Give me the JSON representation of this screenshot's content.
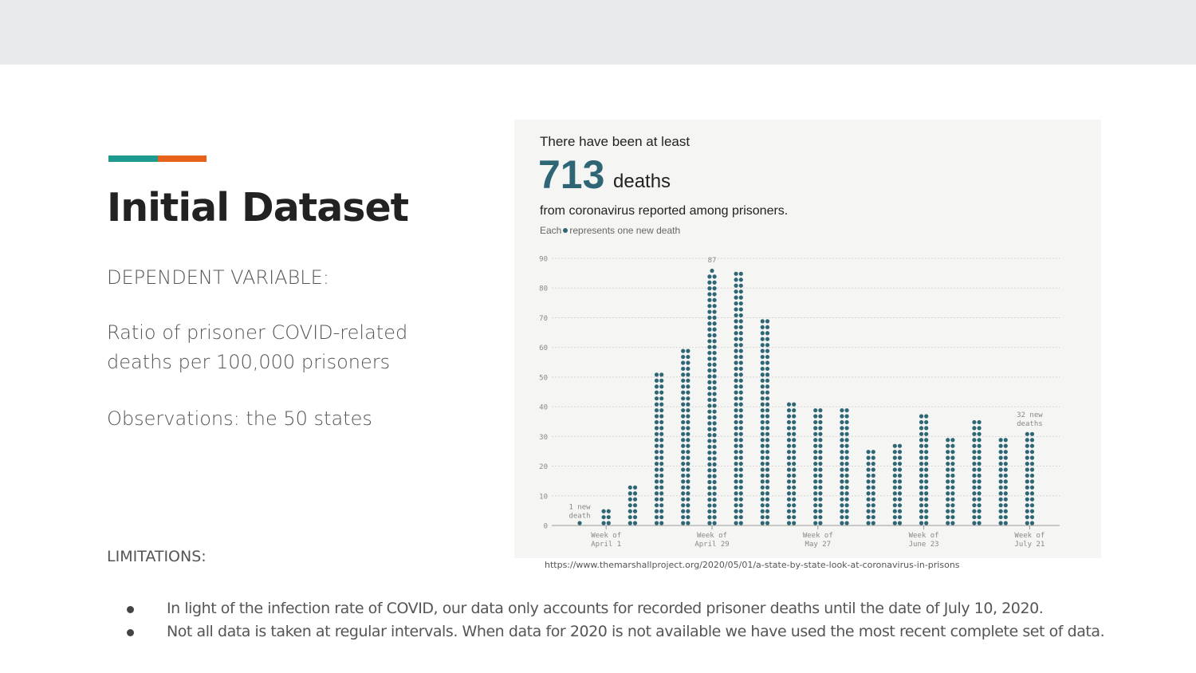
{
  "slide": {
    "title": "Initial Dataset",
    "dependent_label": "DEPENDENT VARIABLE:",
    "dependent_value": "Ratio of prisoner COVID-related deaths per 100,000 prisoners",
    "observations": "Observations: the 50 states",
    "limitations_title": "LIMITATIONS:",
    "limitations": [
      "In light of the infection rate of COVID, our data only accounts for recorded prisoner deaths until the date of July 10, 2020.",
      "Not all data is taken at regular intervals. When data for 2020 is not available we have used the most recent complete set of data."
    ],
    "source": "https://www.themarshallproject.org/2020/05/01/a-state-by-state-look-at-coronavirus-in-prisons"
  },
  "colors": {
    "accent_teal": "#1e9a8e",
    "accent_orange": "#e8611a",
    "dot": "#2f6676",
    "top_band": "#e8eaeb"
  },
  "chart_header": {
    "lead": "There have been at least",
    "total": "713",
    "unit": "deaths",
    "subtitle": "from coronavirus reported among prisoners.",
    "legend_prefix": "Each",
    "legend_suffix": "represents one new death"
  },
  "chart_data": {
    "type": "bar",
    "encoding": "dot stacks, one dot per death",
    "values": [
      1,
      6,
      14,
      52,
      60,
      87,
      86,
      70,
      42,
      40,
      40,
      26,
      28,
      38,
      30,
      36,
      30,
      32
    ],
    "x_tick_labels": [
      {
        "index": 1,
        "lines": [
          "Week of",
          "April 1"
        ]
      },
      {
        "index": 5,
        "lines": [
          "Week of",
          "April 29"
        ]
      },
      {
        "index": 9,
        "lines": [
          "Week of",
          "May 27"
        ]
      },
      {
        "index": 13,
        "lines": [
          "Week of",
          "June 23"
        ]
      },
      {
        "index": 17,
        "lines": [
          "Week of",
          "July 21"
        ]
      }
    ],
    "annotations": [
      {
        "index": 0,
        "lines": [
          "1 new",
          "death"
        ]
      },
      {
        "index": 5,
        "lines": [
          "87"
        ]
      },
      {
        "index": 17,
        "lines": [
          "32 new",
          "deaths"
        ]
      }
    ],
    "y_ticks": [
      0,
      10,
      20,
      30,
      40,
      50,
      60,
      70,
      80,
      90
    ],
    "ylim": [
      0,
      90
    ],
    "grid": true
  }
}
